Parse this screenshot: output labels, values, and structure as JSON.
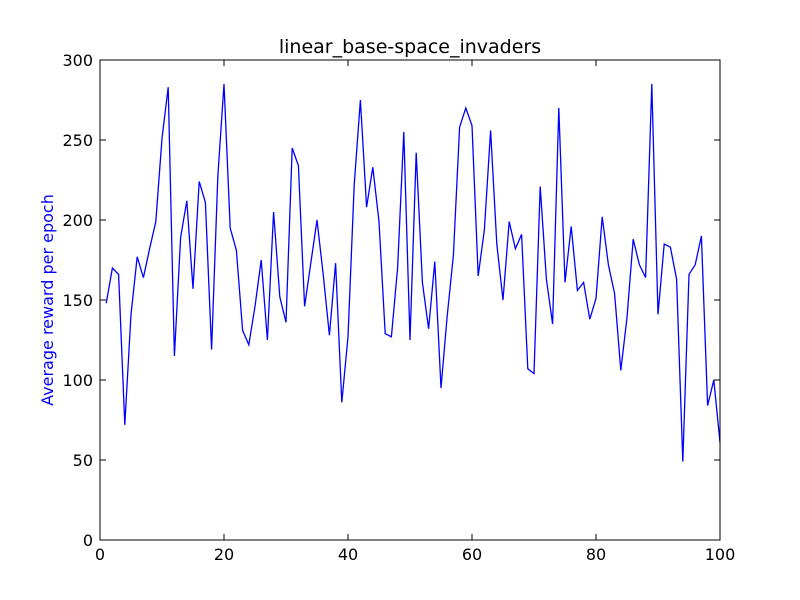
{
  "chart_data": {
    "type": "line",
    "title": "linear_base-space_invaders",
    "xlabel": "",
    "ylabel": "Average reward per epoch",
    "xlim": [
      0,
      100
    ],
    "ylim": [
      0,
      300
    ],
    "x_ticks": [
      "0",
      "20",
      "40",
      "60",
      "80",
      "100"
    ],
    "y_ticks": [
      "0",
      "50",
      "100",
      "150",
      "200",
      "250",
      "300"
    ],
    "grid": false,
    "line_color": "#0000ff",
    "ylabel_color": "#0000ff",
    "series": [
      {
        "x": [
          1,
          2,
          3,
          4,
          5,
          6,
          7,
          8,
          9,
          10,
          11,
          12,
          13,
          14,
          15,
          16,
          17,
          18,
          19,
          20,
          21,
          22,
          23,
          24,
          25,
          26,
          27,
          28,
          29,
          30,
          31,
          32,
          33,
          34,
          35,
          36,
          37,
          38,
          39,
          40,
          41,
          42,
          43,
          44,
          45,
          46,
          47,
          48,
          49,
          50,
          51,
          52,
          53,
          54,
          55,
          56,
          57,
          58,
          59,
          60,
          61,
          62,
          63,
          64,
          65,
          66,
          67,
          68,
          69,
          70,
          71,
          72,
          73,
          74,
          75,
          76,
          77,
          78,
          79,
          80,
          81,
          82,
          83,
          84,
          85,
          86,
          87,
          88,
          89,
          90,
          91,
          92,
          93,
          94,
          95,
          96,
          97,
          98,
          99,
          100
        ],
        "values": [
          148,
          170,
          166,
          72,
          141,
          177,
          164,
          182,
          199,
          251,
          283,
          115,
          189,
          212,
          157,
          224,
          211,
          119,
          227,
          285,
          195,
          181,
          131,
          122,
          146,
          175,
          125,
          205,
          152,
          136,
          245,
          234,
          146,
          173,
          200,
          166,
          128,
          173,
          86,
          127,
          222,
          275,
          208,
          233,
          199,
          129,
          127,
          170,
          255,
          125,
          242,
          161,
          132,
          174,
          95,
          140,
          178,
          258,
          270,
          259,
          165,
          194,
          256,
          185,
          150,
          199,
          182,
          191,
          107,
          104,
          221,
          163,
          135,
          270,
          161,
          196,
          156,
          161,
          138,
          151,
          202,
          172,
          154,
          106,
          139,
          188,
          172,
          164,
          285,
          141,
          185,
          183,
          163,
          49,
          166,
          172,
          190,
          84,
          100,
          61
        ]
      }
    ]
  }
}
